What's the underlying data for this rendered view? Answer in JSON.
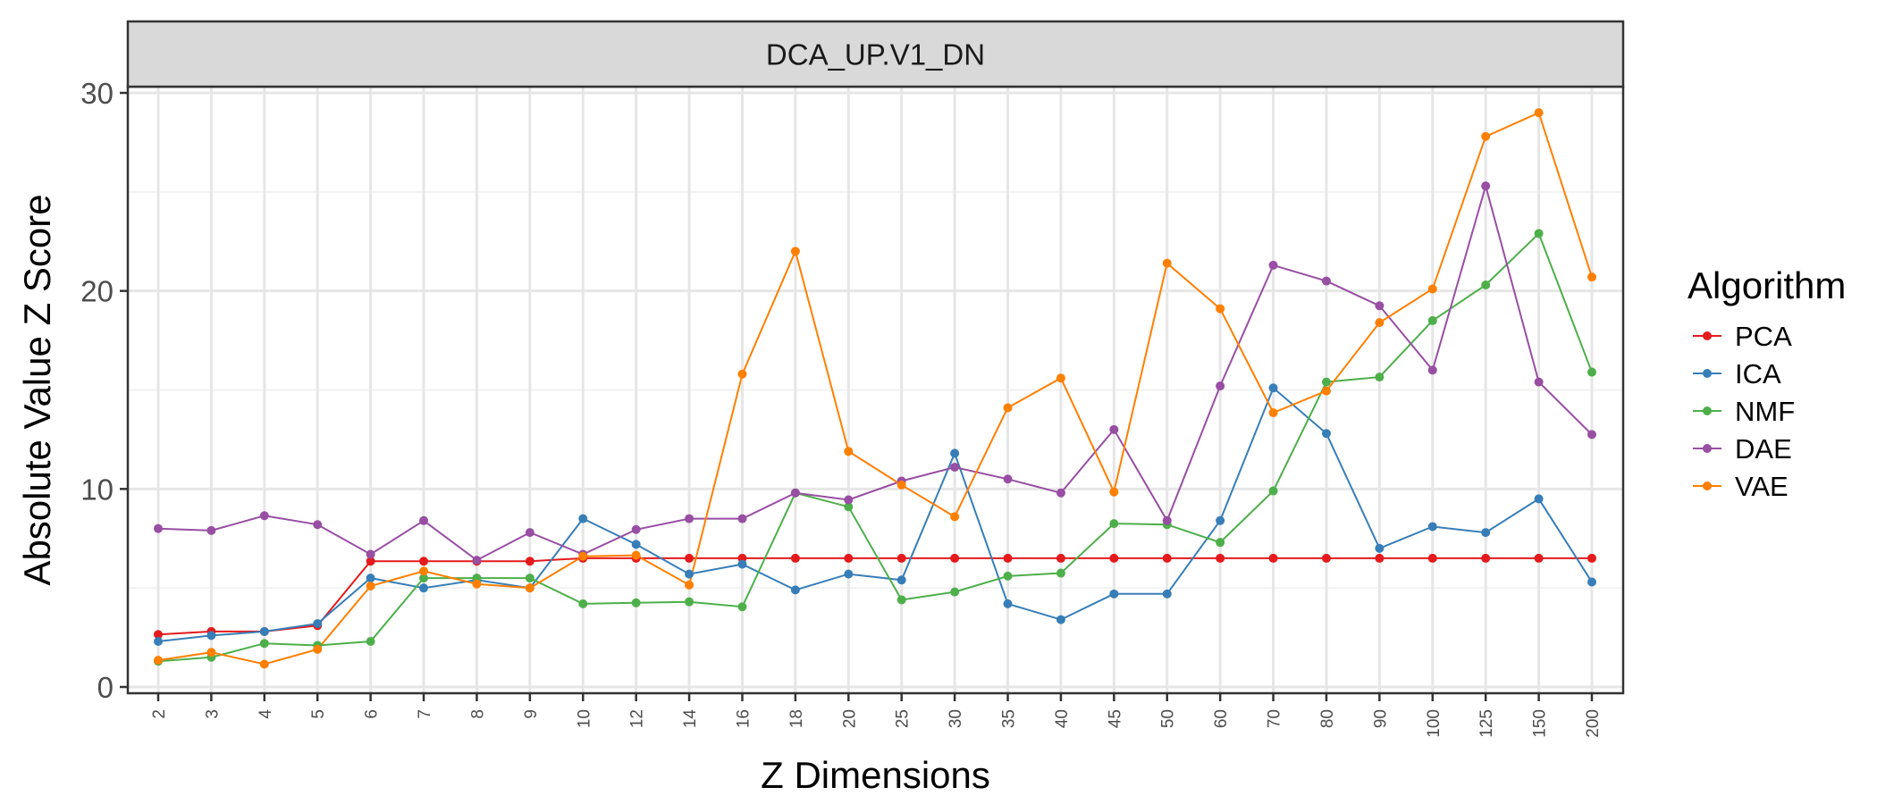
{
  "chart_data": {
    "type": "line",
    "facet_title": "DCA_UP.V1_DN",
    "xlabel": "Z Dimensions",
    "ylabel": "Absolute Value Z Score",
    "categories": [
      "2",
      "3",
      "4",
      "5",
      "6",
      "7",
      "8",
      "9",
      "10",
      "12",
      "14",
      "16",
      "18",
      "20",
      "25",
      "30",
      "35",
      "40",
      "45",
      "50",
      "60",
      "70",
      "80",
      "90",
      "100",
      "125",
      "150",
      "200"
    ],
    "ylim": [
      0,
      33
    ],
    "y_ticks": [
      0,
      10,
      20,
      30
    ],
    "grid": true,
    "legend_title": "Algorithm",
    "legend_position": "right",
    "series": [
      {
        "name": "PCA",
        "color": "#e41a1c",
        "values": [
          2.65,
          2.8,
          2.8,
          3.1,
          6.35,
          6.35,
          6.35,
          6.35,
          6.5,
          6.5,
          6.5,
          6.5,
          6.5,
          6.5,
          6.5,
          6.5,
          6.5,
          6.5,
          6.5,
          6.5,
          6.5,
          6.5,
          6.5,
          6.5,
          6.5,
          6.5,
          6.5,
          6.5
        ]
      },
      {
        "name": "ICA",
        "color": "#377eb8",
        "values": [
          2.3,
          2.6,
          2.8,
          3.2,
          5.5,
          5.0,
          5.4,
          5.0,
          8.5,
          7.2,
          5.7,
          6.2,
          4.9,
          5.7,
          5.4,
          11.8,
          4.2,
          3.4,
          4.7,
          4.7,
          8.4,
          15.1,
          12.8,
          7.0,
          8.1,
          7.8,
          9.5,
          5.3
        ]
      },
      {
        "name": "NMF",
        "color": "#4daf4a",
        "values": [
          1.3,
          1.5,
          2.2,
          2.1,
          2.3,
          5.5,
          5.5,
          5.5,
          4.2,
          4.25,
          4.3,
          4.05,
          9.8,
          9.1,
          4.4,
          4.8,
          5.6,
          5.75,
          8.25,
          8.2,
          7.3,
          9.9,
          15.4,
          15.65,
          18.5,
          20.3,
          22.9,
          15.9
        ]
      },
      {
        "name": "DAE",
        "color": "#984ea3",
        "values": [
          8.0,
          7.9,
          8.65,
          8.2,
          6.7,
          8.4,
          6.4,
          7.8,
          6.7,
          7.95,
          8.5,
          8.5,
          9.8,
          9.45,
          10.4,
          11.1,
          10.5,
          9.8,
          13.0,
          8.4,
          15.2,
          21.3,
          20.5,
          19.25,
          16.0,
          25.3,
          15.4,
          12.75
        ]
      },
      {
        "name": "VAE",
        "color": "#ff7f00",
        "values": [
          1.35,
          1.75,
          1.15,
          1.9,
          5.1,
          5.85,
          5.2,
          5.0,
          6.6,
          6.65,
          5.15,
          15.8,
          22.0,
          11.9,
          10.2,
          8.6,
          14.1,
          15.6,
          9.85,
          21.4,
          19.1,
          13.85,
          14.95,
          18.4,
          20.1,
          27.8,
          29.0,
          20.7
        ]
      }
    ]
  }
}
